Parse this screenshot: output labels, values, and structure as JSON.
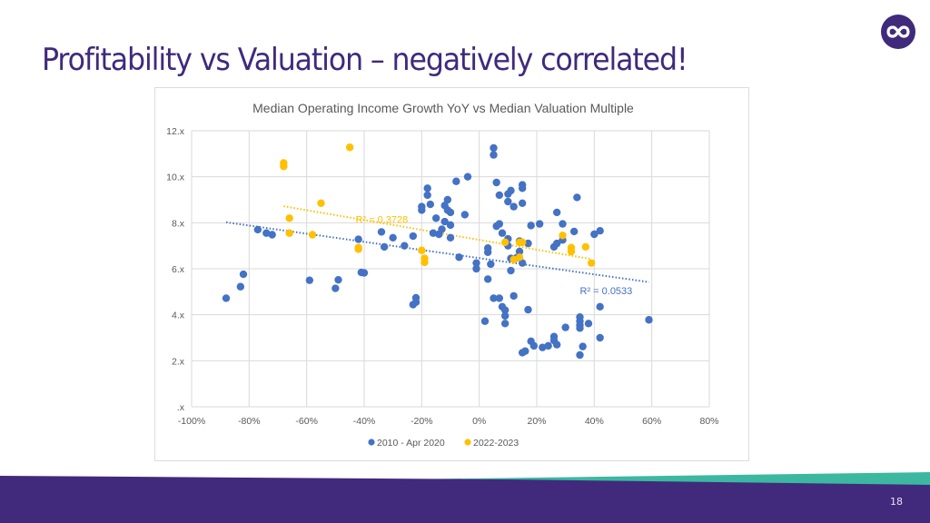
{
  "slide": {
    "title": "Profitability vs Valuation – negatively correlated!",
    "page_number": "18",
    "logo_icon": "infinity-icon",
    "colors": {
      "title": "#3f2a7c",
      "footer_purple": "#412a7c",
      "footer_teal": "#3cb8a0"
    }
  },
  "chart_data": {
    "type": "scatter",
    "title": "Median Operating Income Growth YoY vs Median Valuation Multiple",
    "xlabel": "",
    "ylabel": "",
    "xlim": [
      -1.0,
      0.8
    ],
    "ylim": [
      0,
      12
    ],
    "x_ticks": [
      {
        "value": -1.0,
        "label": "-100%"
      },
      {
        "value": -0.8,
        "label": "-80%"
      },
      {
        "value": -0.6,
        "label": "-60%"
      },
      {
        "value": -0.4,
        "label": "-40%"
      },
      {
        "value": -0.2,
        "label": "-20%"
      },
      {
        "value": 0.0,
        "label": "0%"
      },
      {
        "value": 0.2,
        "label": "20%"
      },
      {
        "value": 0.4,
        "label": "40%"
      },
      {
        "value": 0.6,
        "label": "60%"
      },
      {
        "value": 0.8,
        "label": "80%"
      }
    ],
    "y_ticks": [
      {
        "value": 0,
        "label": ".x"
      },
      {
        "value": 2,
        "label": "2.x"
      },
      {
        "value": 4,
        "label": "4.x"
      },
      {
        "value": 6,
        "label": "6.x"
      },
      {
        "value": 8,
        "label": "8.x"
      },
      {
        "value": 10,
        "label": "10.x"
      },
      {
        "value": 12,
        "label": "12.x"
      }
    ],
    "grid": true,
    "legend_position": "bottom",
    "series": [
      {
        "name": "2010 - Apr 2020",
        "color": "#4472c4",
        "trendline": {
          "x": [
            -0.88,
            0.59
          ],
          "y": [
            8.02,
            5.42
          ],
          "label": "R² = 0.0533",
          "label_at": [
            0.35,
            4.9
          ]
        },
        "points": [
          [
            -0.88,
            4.72
          ],
          [
            -0.83,
            5.22
          ],
          [
            -0.82,
            5.76
          ],
          [
            -0.77,
            7.7
          ],
          [
            -0.74,
            7.55
          ],
          [
            -0.72,
            7.48
          ],
          [
            -0.59,
            5.5
          ],
          [
            -0.5,
            5.15
          ],
          [
            -0.49,
            5.52
          ],
          [
            -0.42,
            7.28
          ],
          [
            -0.41,
            5.84
          ],
          [
            -0.4,
            5.82
          ],
          [
            -0.34,
            7.6
          ],
          [
            -0.33,
            6.95
          ],
          [
            -0.3,
            7.35
          ],
          [
            -0.26,
            7.0
          ],
          [
            -0.23,
            7.42
          ],
          [
            -0.23,
            4.44
          ],
          [
            -0.22,
            4.55
          ],
          [
            -0.22,
            4.74
          ],
          [
            -0.2,
            8.55
          ],
          [
            -0.2,
            8.7
          ],
          [
            -0.18,
            9.5
          ],
          [
            -0.18,
            9.2
          ],
          [
            -0.17,
            8.8
          ],
          [
            -0.16,
            7.55
          ],
          [
            -0.15,
            8.2
          ],
          [
            -0.14,
            7.5
          ],
          [
            -0.13,
            7.72
          ],
          [
            -0.12,
            8.05
          ],
          [
            -0.12,
            8.75
          ],
          [
            -0.11,
            9.0
          ],
          [
            -0.11,
            8.55
          ],
          [
            -0.1,
            8.45
          ],
          [
            -0.1,
            7.9
          ],
          [
            -0.1,
            7.35
          ],
          [
            -0.08,
            9.8
          ],
          [
            -0.07,
            6.5
          ],
          [
            -0.05,
            8.35
          ],
          [
            -0.04,
            10.0
          ],
          [
            -0.01,
            6.25
          ],
          [
            -0.01,
            6.0
          ],
          [
            0.02,
            3.72
          ],
          [
            0.03,
            6.72
          ],
          [
            0.03,
            6.9
          ],
          [
            0.03,
            5.55
          ],
          [
            0.04,
            6.2
          ],
          [
            0.05,
            4.72
          ],
          [
            0.05,
            11.25
          ],
          [
            0.05,
            10.95
          ],
          [
            0.06,
            9.75
          ],
          [
            0.06,
            7.85
          ],
          [
            0.07,
            7.95
          ],
          [
            0.07,
            9.2
          ],
          [
            0.07,
            4.72
          ],
          [
            0.08,
            4.35
          ],
          [
            0.08,
            7.55
          ],
          [
            0.09,
            3.95
          ],
          [
            0.09,
            3.62
          ],
          [
            0.09,
            4.2
          ],
          [
            0.1,
            9.25
          ],
          [
            0.1,
            8.92
          ],
          [
            0.1,
            7.3
          ],
          [
            0.1,
            7.0
          ],
          [
            0.11,
            9.4
          ],
          [
            0.11,
            6.45
          ],
          [
            0.11,
            5.92
          ],
          [
            0.12,
            8.7
          ],
          [
            0.12,
            4.82
          ],
          [
            0.13,
            6.48
          ],
          [
            0.14,
            6.75
          ],
          [
            0.14,
            7.2
          ],
          [
            0.15,
            9.65
          ],
          [
            0.15,
            9.5
          ],
          [
            0.15,
            8.85
          ],
          [
            0.15,
            6.25
          ],
          [
            0.15,
            2.35
          ],
          [
            0.16,
            2.42
          ],
          [
            0.17,
            7.1
          ],
          [
            0.17,
            4.22
          ],
          [
            0.18,
            7.88
          ],
          [
            0.18,
            2.85
          ],
          [
            0.19,
            2.65
          ],
          [
            0.21,
            7.95
          ],
          [
            0.22,
            2.58
          ],
          [
            0.24,
            2.65
          ],
          [
            0.26,
            3.05
          ],
          [
            0.26,
            2.88
          ],
          [
            0.26,
            6.95
          ],
          [
            0.27,
            7.1
          ],
          [
            0.27,
            2.7
          ],
          [
            0.27,
            8.45
          ],
          [
            0.29,
            7.95
          ],
          [
            0.29,
            7.25
          ],
          [
            0.3,
            3.45
          ],
          [
            0.33,
            7.62
          ],
          [
            0.34,
            9.1
          ],
          [
            0.35,
            3.9
          ],
          [
            0.35,
            3.72
          ],
          [
            0.35,
            3.55
          ],
          [
            0.35,
            3.42
          ],
          [
            0.35,
            2.25
          ],
          [
            0.36,
            2.62
          ],
          [
            0.38,
            3.62
          ],
          [
            0.4,
            7.5
          ],
          [
            0.42,
            7.65
          ],
          [
            0.42,
            4.35
          ],
          [
            0.42,
            3.0
          ],
          [
            0.59,
            3.78
          ]
        ]
      },
      {
        "name": "2022-2023",
        "color": "#ffc000",
        "trendline": {
          "x": [
            -0.68,
            0.39
          ],
          "y": [
            8.72,
            6.42
          ],
          "label": "R² = 0.3728",
          "label_at": [
            -0.43,
            8.0
          ]
        },
        "points": [
          [
            -0.68,
            10.6
          ],
          [
            -0.68,
            10.45
          ],
          [
            -0.66,
            8.2
          ],
          [
            -0.66,
            7.55
          ],
          [
            -0.58,
            7.48
          ],
          [
            -0.55,
            8.85
          ],
          [
            -0.45,
            11.28
          ],
          [
            -0.42,
            6.92
          ],
          [
            -0.42,
            6.85
          ],
          [
            -0.2,
            6.8
          ],
          [
            -0.19,
            6.45
          ],
          [
            -0.19,
            6.28
          ],
          [
            0.09,
            7.15
          ],
          [
            0.12,
            6.4
          ],
          [
            0.14,
            6.5
          ],
          [
            0.14,
            7.15
          ],
          [
            0.15,
            7.15
          ],
          [
            0.29,
            7.45
          ],
          [
            0.32,
            6.92
          ],
          [
            0.32,
            6.75
          ],
          [
            0.37,
            6.95
          ],
          [
            0.39,
            6.25
          ]
        ]
      }
    ]
  }
}
